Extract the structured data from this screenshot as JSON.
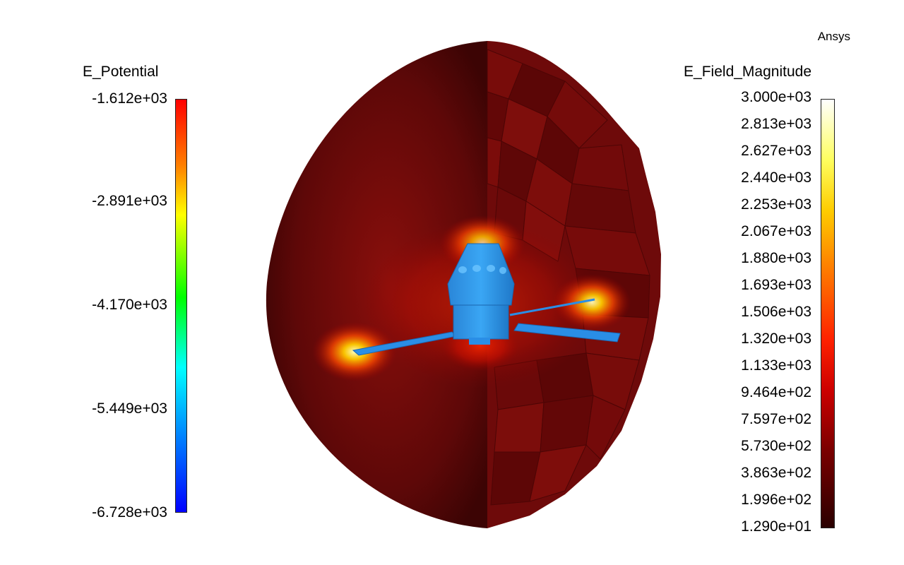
{
  "brand": "Ansys",
  "legend_left": {
    "title": "E_Potential",
    "ticks": [
      "-1.612e+03",
      "-2.891e+03",
      "-4.170e+03",
      "-5.449e+03",
      "-6.728e+03"
    ]
  },
  "legend_right": {
    "title": "E_Field_Magnitude",
    "ticks": [
      "3.000e+03",
      "2.813e+03",
      "2.627e+03",
      "2.440e+03",
      "2.253e+03",
      "2.067e+03",
      "1.880e+03",
      "1.693e+03",
      "1.506e+03",
      "1.320e+03",
      "1.133e+03",
      "9.464e+02",
      "7.597e+02",
      "5.730e+02",
      "3.863e+02",
      "1.996e+02",
      "1.290e+01"
    ]
  },
  "colors": {
    "field_background": "#6b0b0b",
    "spacecraft": "#1e90e8"
  }
}
